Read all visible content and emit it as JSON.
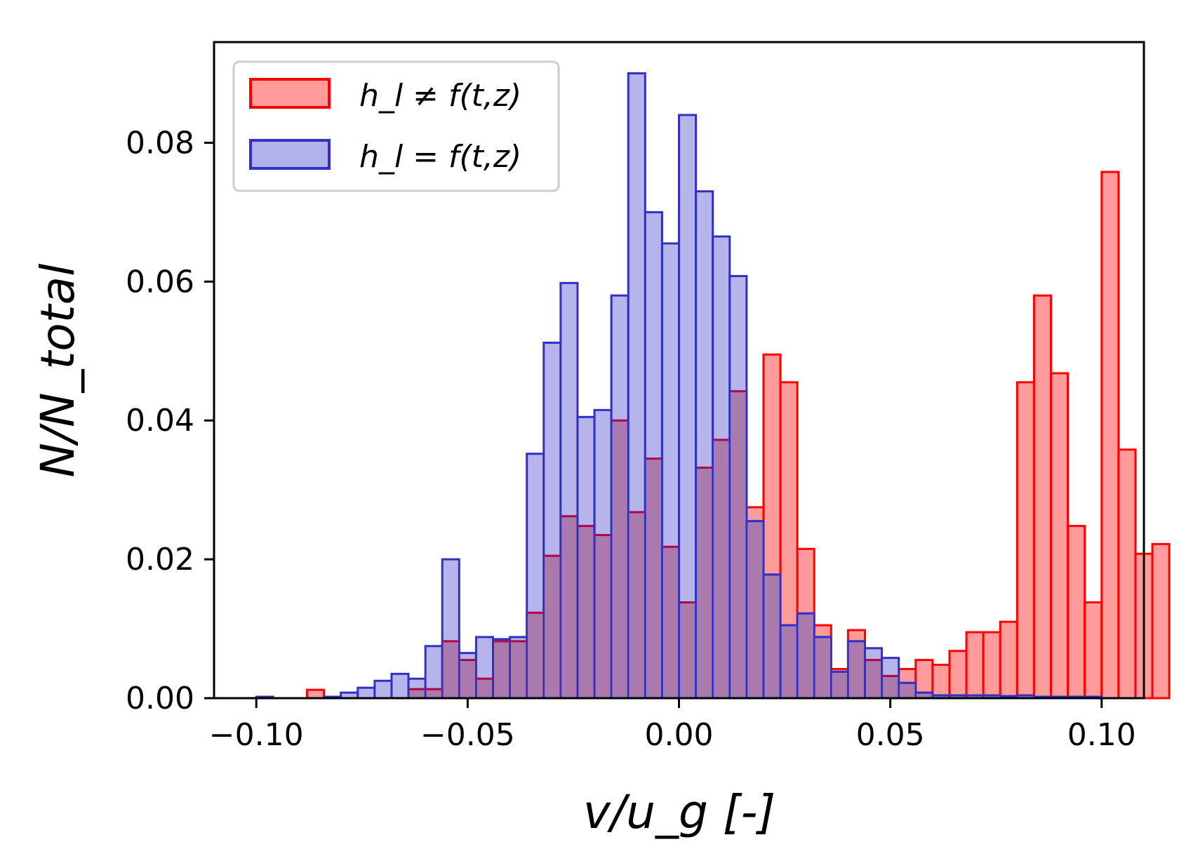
{
  "chart_data": {
    "type": "histogram",
    "xlabel": "v/u_g [-]",
    "ylabel": "N/N_total",
    "xlim": [
      -0.11,
      0.11
    ],
    "ylim": [
      0,
      0.0945
    ],
    "x_ticks": [
      -0.1,
      -0.05,
      0.0,
      0.05,
      0.1
    ],
    "x_tick_labels": [
      "−0.10",
      "−0.05",
      "0.00",
      "0.05",
      "0.10"
    ],
    "y_ticks": [
      0.0,
      0.02,
      0.04,
      0.06,
      0.08
    ],
    "y_tick_labels": [
      "0.00",
      "0.02",
      "0.04",
      "0.06",
      "0.08"
    ],
    "bin_start": -0.1,
    "bin_width": 0.004,
    "legend_position": "upper left",
    "series": [
      {
        "name": "h_l ≠ f(t,z)",
        "fill": "#ff9b9b",
        "stroke": "#ff0000",
        "values": [
          0,
          0,
          0,
          0.0012,
          0,
          0,
          0,
          0,
          0,
          0.0013,
          0.0013,
          0.0082,
          0.0055,
          0.0028,
          0.0082,
          0.0082,
          0.0123,
          0.0205,
          0.0262,
          0.0248,
          0.0235,
          0.04,
          0.0268,
          0.0345,
          0.0218,
          0.0138,
          0.0332,
          0.0372,
          0.0442,
          0.0275,
          0.0495,
          0.0455,
          0.0215,
          0.0105,
          0.0042,
          0.0098,
          0.0055,
          0.0032,
          0.0042,
          0.0055,
          0.0048,
          0.0068,
          0.0095,
          0.0095,
          0.011,
          0.0455,
          0.058,
          0.0468,
          0.0248,
          0.0138,
          0.0758,
          0.0358,
          0.0208,
          0.0222
        ]
      },
      {
        "name": "h_l = f(t,z)",
        "fill": "#b1b1eb",
        "stroke": "#3030c8",
        "values": [
          0.0002,
          0,
          0,
          0,
          0.0002,
          0.0008,
          0.0015,
          0.0025,
          0.0035,
          0.0028,
          0.0075,
          0.02,
          0.0065,
          0.0088,
          0.0085,
          0.0088,
          0.0352,
          0.0512,
          0.0598,
          0.0405,
          0.0415,
          0.058,
          0.09,
          0.07,
          0.0655,
          0.084,
          0.073,
          0.0665,
          0.0608,
          0.0255,
          0.0178,
          0.0105,
          0.0122,
          0.0088,
          0.0038,
          0.0082,
          0.0072,
          0.0058,
          0.0022,
          0.0008,
          0.0004,
          0.0004,
          0.0004,
          0.0004,
          0.0003,
          0.0004,
          0.0002,
          0.0002,
          0.0002,
          0.0002
        ]
      }
    ]
  }
}
